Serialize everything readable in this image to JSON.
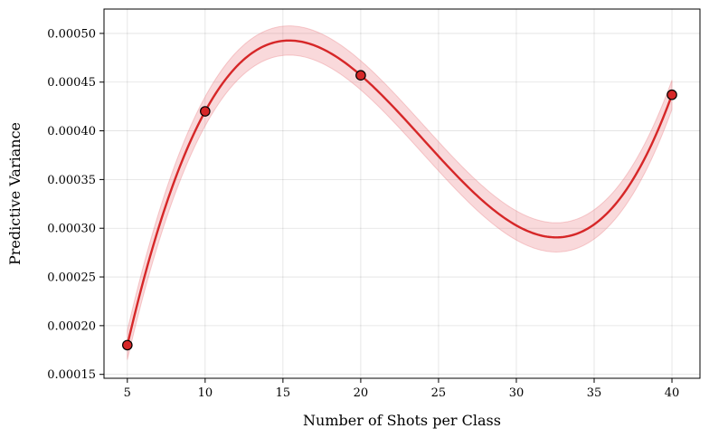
{
  "chart_data": {
    "type": "line",
    "title": "",
    "xlabel": "Number of Shots per Class",
    "ylabel": "Predictive Variance",
    "xlim": [
      3.5,
      41.8
    ],
    "ylim": [
      0.000146,
      0.000525
    ],
    "xticks": [
      5,
      10,
      15,
      20,
      25,
      30,
      35,
      40
    ],
    "xtick_labels": [
      "5",
      "10",
      "15",
      "20",
      "25",
      "30",
      "35",
      "40"
    ],
    "yticks": [
      0.00015,
      0.0002,
      0.00025,
      0.0003,
      0.00035,
      0.0004,
      0.00045,
      0.0005
    ],
    "ytick_labels": [
      "0.00015",
      "0.00020",
      "0.00025",
      "0.00030",
      "0.00035",
      "0.00040",
      "0.00045",
      "0.00050"
    ],
    "grid": true,
    "series": [
      {
        "points": [
          {
            "x": 5,
            "y": 0.00018
          },
          {
            "x": 10,
            "y": 0.00042
          },
          {
            "x": 20,
            "y": 0.000457
          },
          {
            "x": 40,
            "y": 0.000437
          }
        ],
        "fit_curve": true,
        "band_halfwidth": 1.5e-05,
        "line_color": "#d62728",
        "band_color": "#e8777d",
        "marker_fill": "#d62728",
        "marker_edge": "#000000"
      }
    ]
  }
}
